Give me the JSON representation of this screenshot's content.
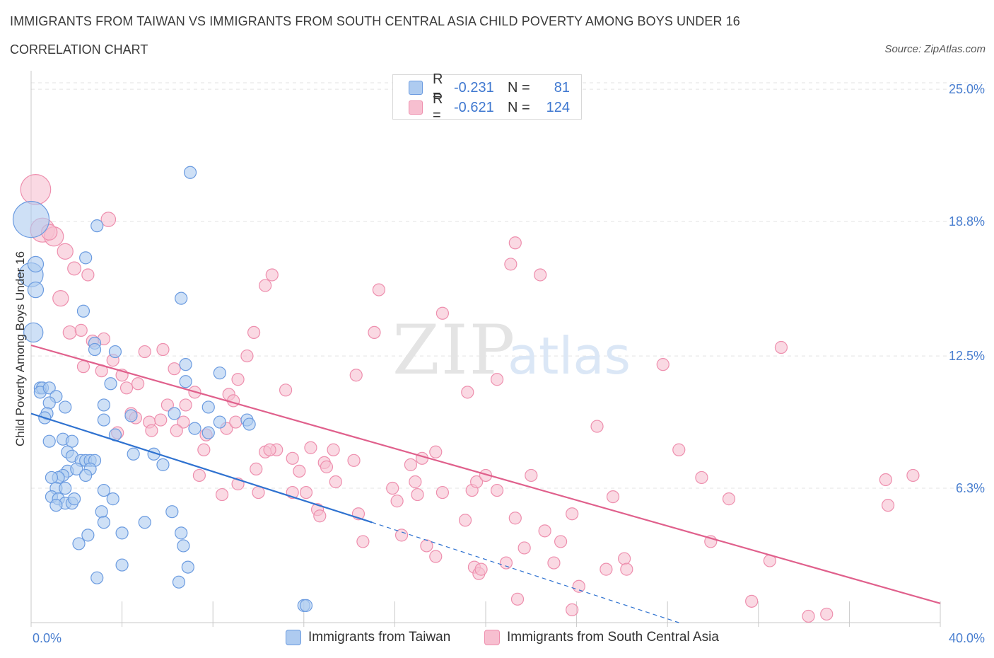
{
  "header": {
    "title": "IMMIGRANTS FROM TAIWAN VS IMMIGRANTS FROM SOUTH CENTRAL ASIA CHILD POVERTY AMONG BOYS UNDER 16",
    "subtitle": "CORRELATION CHART",
    "source": "Source: ZipAtlas.com"
  },
  "watermark": {
    "zip": "ZIP",
    "atlas": "atlas"
  },
  "legend": {
    "rows": [
      {
        "r_label": "R =",
        "r_value": "-0.231",
        "n_label": "N =",
        "n_value": "81"
      },
      {
        "r_label": "R =",
        "r_value": "-0.621",
        "n_label": "N =",
        "n_value": "124"
      }
    ]
  },
  "bottom_legend": {
    "taiwan": "Immigrants from Taiwan",
    "sca": "Immigrants from South Central Asia"
  },
  "colors": {
    "taiwan_fill": "#aecbf0",
    "taiwan_stroke": "#6b9be0",
    "taiwan_line": "#2f72d0",
    "sca_fill": "#f7bfd0",
    "sca_stroke": "#ee8fae",
    "sca_line": "#e0608c",
    "grid": "#e3e3e3",
    "axis_text": "#4a7fd0"
  },
  "chart_data": {
    "type": "scatter",
    "title": "IMMIGRANTS FROM TAIWAN VS IMMIGRANTS FROM SOUTH CENTRAL ASIA CHILD POVERTY AMONG BOYS UNDER 16",
    "xlabel": "",
    "ylabel": "Child Poverty Among Boys Under 16",
    "xlim": [
      0,
      40
    ],
    "ylim": [
      0,
      26
    ],
    "x_tick_labels": [
      "0.0%",
      "40.0%"
    ],
    "y_ticks": [
      {
        "value": 25.0,
        "label": "25.0%"
      },
      {
        "value": 18.8,
        "label": "18.8%"
      },
      {
        "value": 12.5,
        "label": "12.5%"
      },
      {
        "value": 6.3,
        "label": "6.3%"
      }
    ],
    "series": [
      {
        "name": "Immigrants from Taiwan",
        "r": -0.231,
        "n": 81,
        "trend": {
          "x": [
            0,
            15
          ],
          "y": [
            9.8,
            4.7
          ]
        },
        "trend_dashed": {
          "x": [
            15,
            28.5
          ],
          "y": [
            4.7,
            0.0
          ]
        },
        "points": [
          [
            0.0,
            18.9,
            3
          ],
          [
            0.0,
            16.3,
            2
          ],
          [
            0.2,
            16.8,
            1.3
          ],
          [
            0.2,
            15.6,
            1.3
          ],
          [
            0.1,
            13.6,
            1.6
          ],
          [
            0.4,
            11.0,
            1
          ],
          [
            0.5,
            11.0,
            1
          ],
          [
            0.4,
            10.8,
            1
          ],
          [
            0.8,
            11.0,
            1
          ],
          [
            1.1,
            10.6,
            1
          ],
          [
            0.8,
            10.3,
            1
          ],
          [
            1.5,
            10.1,
            1
          ],
          [
            0.7,
            9.8,
            1
          ],
          [
            0.6,
            9.6,
            1
          ],
          [
            0.8,
            8.5,
            1
          ],
          [
            1.4,
            8.6,
            1
          ],
          [
            1.8,
            8.5,
            1
          ],
          [
            1.6,
            8.0,
            1
          ],
          [
            1.8,
            7.8,
            1
          ],
          [
            2.2,
            7.6,
            1
          ],
          [
            2.4,
            7.6,
            1
          ],
          [
            2.6,
            7.6,
            1
          ],
          [
            2.8,
            7.6,
            1
          ],
          [
            1.6,
            7.1,
            1
          ],
          [
            2.0,
            7.2,
            1
          ],
          [
            2.6,
            7.2,
            1
          ],
          [
            2.4,
            6.9,
            1
          ],
          [
            1.4,
            6.9,
            1
          ],
          [
            1.2,
            6.8,
            1
          ],
          [
            0.9,
            6.8,
            1
          ],
          [
            1.1,
            6.3,
            1
          ],
          [
            1.5,
            6.3,
            1
          ],
          [
            0.9,
            5.9,
            1
          ],
          [
            1.2,
            5.8,
            1
          ],
          [
            1.5,
            5.6,
            1
          ],
          [
            1.8,
            5.6,
            1
          ],
          [
            1.9,
            5.8,
            1
          ],
          [
            1.1,
            5.5,
            1
          ],
          [
            3.2,
            6.2,
            1
          ],
          [
            3.6,
            5.8,
            1
          ],
          [
            3.1,
            5.2,
            1
          ],
          [
            3.2,
            4.7,
            1
          ],
          [
            2.5,
            4.1,
            1
          ],
          [
            2.1,
            3.7,
            1
          ],
          [
            4.0,
            4.2,
            1
          ],
          [
            5.0,
            4.7,
            1
          ],
          [
            6.2,
            5.2,
            1
          ],
          [
            6.6,
            4.2,
            1
          ],
          [
            6.7,
            3.6,
            1
          ],
          [
            6.5,
            1.9,
            1
          ],
          [
            6.9,
            2.6,
            1
          ],
          [
            2.9,
            2.1,
            1
          ],
          [
            4.0,
            2.7,
            1
          ],
          [
            3.7,
            8.8,
            1
          ],
          [
            4.5,
            7.9,
            1
          ],
          [
            5.4,
            7.9,
            1
          ],
          [
            5.8,
            7.4,
            1
          ],
          [
            4.4,
            9.7,
            1
          ],
          [
            3.2,
            9.5,
            1
          ],
          [
            3.2,
            10.2,
            1
          ],
          [
            3.5,
            11.2,
            1
          ],
          [
            2.8,
            13.1,
            1
          ],
          [
            2.8,
            12.8,
            1
          ],
          [
            3.7,
            12.7,
            1
          ],
          [
            2.3,
            14.6,
            1
          ],
          [
            2.4,
            17.1,
            1
          ],
          [
            2.9,
            18.6,
            1
          ],
          [
            6.6,
            15.2,
            1
          ],
          [
            7.0,
            21.1,
            1
          ],
          [
            6.8,
            12.1,
            1
          ],
          [
            6.8,
            11.3,
            1
          ],
          [
            6.3,
            9.8,
            1
          ],
          [
            7.8,
            10.1,
            1
          ],
          [
            8.3,
            9.4,
            1
          ],
          [
            7.8,
            8.9,
            1
          ],
          [
            8.3,
            11.7,
            1
          ],
          [
            9.5,
            9.5,
            1
          ],
          [
            9.6,
            9.3,
            1
          ],
          [
            12.0,
            0.8,
            1
          ],
          [
            12.1,
            0.8,
            1
          ],
          [
            7.2,
            9.1,
            1
          ]
        ]
      },
      {
        "name": "Immigrants from South Central Asia",
        "r": -0.621,
        "n": 124,
        "trend": {
          "x": [
            0,
            40
          ],
          "y": [
            13.0,
            0.9
          ]
        },
        "points": [
          [
            0.2,
            20.3,
            2.5
          ],
          [
            0.5,
            18.4,
            2
          ],
          [
            1.0,
            18.1,
            1.6
          ],
          [
            0.8,
            18.3,
            1.3
          ],
          [
            1.5,
            17.4,
            1.3
          ],
          [
            1.3,
            15.2,
            1.3
          ],
          [
            1.9,
            16.6,
            1.1
          ],
          [
            2.5,
            16.3,
            1
          ],
          [
            3.4,
            18.9,
            1.2
          ],
          [
            1.7,
            13.6,
            1.1
          ],
          [
            2.2,
            13.7,
            1
          ],
          [
            3.2,
            13.3,
            1
          ],
          [
            2.7,
            13.2,
            1
          ],
          [
            2.3,
            12.0,
            1
          ],
          [
            3.1,
            11.8,
            1
          ],
          [
            3.6,
            12.3,
            1
          ],
          [
            4.0,
            11.6,
            1
          ],
          [
            4.2,
            11.0,
            1
          ],
          [
            4.7,
            11.2,
            1
          ],
          [
            5.0,
            12.7,
            1
          ],
          [
            5.8,
            12.8,
            1
          ],
          [
            6.3,
            11.9,
            1
          ],
          [
            7.2,
            10.8,
            1
          ],
          [
            6.0,
            10.2,
            1
          ],
          [
            6.8,
            10.2,
            1
          ],
          [
            4.4,
            9.8,
            1
          ],
          [
            4.6,
            9.6,
            1
          ],
          [
            5.2,
            9.4,
            1
          ],
          [
            5.7,
            9.5,
            1
          ],
          [
            6.7,
            9.4,
            1
          ],
          [
            3.8,
            8.9,
            1
          ],
          [
            5.3,
            9.0,
            1
          ],
          [
            6.4,
            9.0,
            1
          ],
          [
            7.7,
            8.8,
            1
          ],
          [
            7.6,
            8.1,
            1
          ],
          [
            8.7,
            10.7,
            1
          ],
          [
            8.9,
            10.4,
            1
          ],
          [
            8.6,
            9.1,
            1
          ],
          [
            9.0,
            9.4,
            1
          ],
          [
            9.1,
            11.4,
            1
          ],
          [
            9.5,
            12.5,
            1
          ],
          [
            9.8,
            13.6,
            1
          ],
          [
            10.6,
            16.3,
            1
          ],
          [
            10.3,
            15.8,
            1
          ],
          [
            11.2,
            10.9,
            1
          ],
          [
            10.8,
            8.1,
            1
          ],
          [
            10.3,
            8.0,
            1
          ],
          [
            10.5,
            8.1,
            1
          ],
          [
            11.5,
            7.7,
            1
          ],
          [
            12.3,
            8.2,
            1
          ],
          [
            13.3,
            8.1,
            1
          ],
          [
            12.9,
            7.5,
            1
          ],
          [
            14.2,
            7.6,
            1
          ],
          [
            9.9,
            7.2,
            1
          ],
          [
            11.8,
            7.1,
            1
          ],
          [
            7.4,
            6.9,
            1
          ],
          [
            9.1,
            6.5,
            1
          ],
          [
            10.0,
            6.1,
            1
          ],
          [
            11.5,
            6.1,
            1
          ],
          [
            12.1,
            6.1,
            1
          ],
          [
            13.0,
            7.3,
            1
          ],
          [
            13.4,
            6.6,
            1
          ],
          [
            12.6,
            5.3,
            1
          ],
          [
            12.7,
            5.0,
            1
          ],
          [
            14.4,
            5.1,
            1
          ],
          [
            8.4,
            6.0,
            1
          ],
          [
            14.6,
            3.8,
            1
          ],
          [
            15.3,
            15.6,
            1
          ],
          [
            15.1,
            13.6,
            1
          ],
          [
            14.3,
            11.6,
            1
          ],
          [
            15.9,
            6.3,
            1
          ],
          [
            16.1,
            5.7,
            1
          ],
          [
            16.7,
            7.4,
            1
          ],
          [
            16.9,
            6.6,
            1
          ],
          [
            17.2,
            7.7,
            1
          ],
          [
            17.8,
            8.0,
            1
          ],
          [
            16.3,
            4.1,
            1
          ],
          [
            17.0,
            6.0,
            1
          ],
          [
            17.4,
            3.6,
            1
          ],
          [
            17.8,
            3.1,
            1
          ],
          [
            18.1,
            6.1,
            1
          ],
          [
            19.1,
            4.8,
            1
          ],
          [
            19.4,
            6.2,
            1
          ],
          [
            19.6,
            6.6,
            1
          ],
          [
            19.5,
            2.6,
            1
          ],
          [
            19.7,
            2.3,
            1
          ],
          [
            19.8,
            2.5,
            1
          ],
          [
            18.1,
            14.5,
            1
          ],
          [
            19.2,
            10.8,
            1
          ],
          [
            20.0,
            6.9,
            1
          ],
          [
            20.5,
            11.4,
            1
          ],
          [
            20.5,
            6.2,
            1
          ],
          [
            20.9,
            2.8,
            1
          ],
          [
            21.3,
            4.9,
            1
          ],
          [
            21.4,
            1.1,
            1
          ],
          [
            21.1,
            16.8,
            1
          ],
          [
            21.3,
            17.8,
            1
          ],
          [
            22.0,
            6.9,
            1
          ],
          [
            21.7,
            3.5,
            1
          ],
          [
            22.6,
            4.3,
            1
          ],
          [
            22.4,
            16.3,
            1
          ],
          [
            23.3,
            3.8,
            1
          ],
          [
            23.8,
            5.1,
            1
          ],
          [
            23.0,
            2.8,
            1
          ],
          [
            24.1,
            1.7,
            1
          ],
          [
            23.8,
            0.6,
            1
          ],
          [
            24.9,
            9.2,
            1
          ],
          [
            25.3,
            2.5,
            1
          ],
          [
            25.6,
            5.9,
            1
          ],
          [
            26.1,
            3.0,
            1
          ],
          [
            26.2,
            2.5,
            1
          ],
          [
            27.8,
            12.1,
            1
          ],
          [
            28.5,
            8.1,
            1
          ],
          [
            29.5,
            6.8,
            1
          ],
          [
            29.9,
            3.8,
            1
          ],
          [
            30.7,
            5.8,
            1
          ],
          [
            31.7,
            1.0,
            1
          ],
          [
            32.5,
            2.9,
            1
          ],
          [
            33.0,
            12.9,
            1
          ],
          [
            34.2,
            0.3,
            1
          ],
          [
            35.0,
            0.4,
            1
          ],
          [
            37.6,
            6.7,
            1
          ],
          [
            37.7,
            5.5,
            1
          ],
          [
            38.8,
            6.9,
            1
          ]
        ]
      }
    ]
  }
}
